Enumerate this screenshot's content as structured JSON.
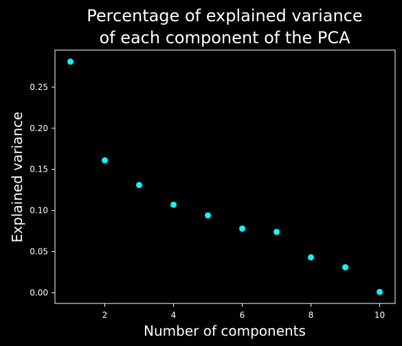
{
  "chart_data": {
    "type": "scatter",
    "title_lines": [
      "Percentage of explained variance",
      "of each component of the PCA"
    ],
    "xlabel": "Number of components",
    "ylabel": "Explained variance",
    "x": [
      1,
      2,
      3,
      4,
      5,
      6,
      7,
      8,
      9,
      10
    ],
    "y": [
      0.281,
      0.161,
      0.131,
      0.107,
      0.094,
      0.078,
      0.074,
      0.043,
      0.031,
      0.001
    ],
    "xlim": [
      0.55,
      10.45
    ],
    "ylim": [
      -0.013,
      0.295
    ],
    "xticks": [
      2,
      4,
      6,
      8,
      10
    ],
    "yticks": [
      0.0,
      0.05,
      0.1,
      0.15,
      0.2,
      0.25
    ],
    "xtick_labels": [
      "2",
      "4",
      "6",
      "8",
      "10"
    ],
    "ytick_labels": [
      "0.00",
      "0.05",
      "0.10",
      "0.15",
      "0.20",
      "0.25"
    ],
    "grid": false,
    "legend": "none",
    "colors": {
      "background": "#000000",
      "foreground": "#ffffff",
      "marker": "#00ffff"
    }
  }
}
